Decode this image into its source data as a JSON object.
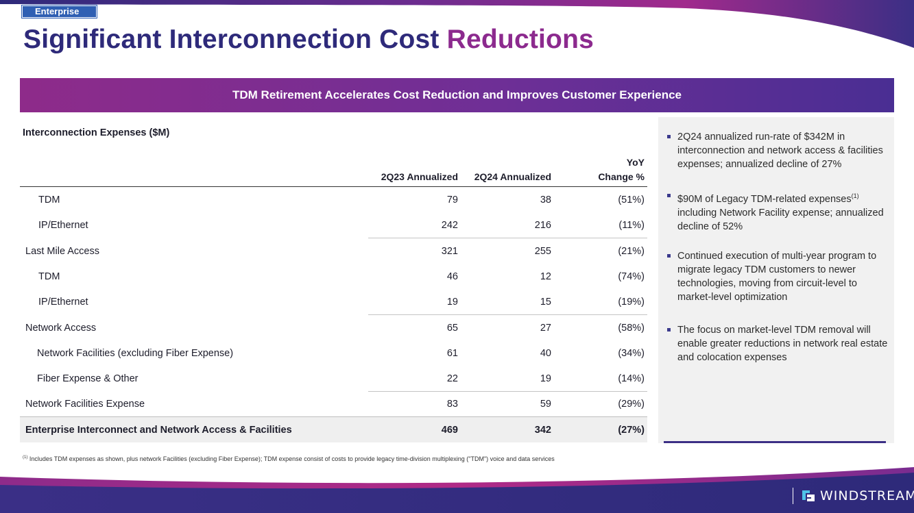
{
  "header": {
    "badge": "Enterprise",
    "title_main": "Significant Interconnection Cost ",
    "title_accent": "Reductions"
  },
  "banner": "TDM Retirement Accelerates Cost Reduction and Improves Customer Experience",
  "table": {
    "caption": "Interconnection Expenses ($M)",
    "col1": "2Q23 Annualized",
    "col2": "2Q24 Annualized",
    "col3_line1": "YoY",
    "col3_line2": "Change %",
    "rows": [
      {
        "label": "TDM",
        "v1": "79",
        "v2": "38",
        "v3": "(51%)"
      },
      {
        "label": "IP/Ethernet",
        "v1": "242",
        "v2": "216",
        "v3": "(11%)"
      },
      {
        "label": "Last Mile Access",
        "v1": "321",
        "v2": "255",
        "v3": "(21%)"
      },
      {
        "label": "TDM",
        "v1": "46",
        "v2": "12",
        "v3": "(74%)"
      },
      {
        "label": "IP/Ethernet",
        "v1": "19",
        "v2": "15",
        "v3": "(19%)"
      },
      {
        "label": "Network Access",
        "v1": "65",
        "v2": "27",
        "v3": "(58%)"
      },
      {
        "label": "Network Facilities (excluding Fiber Expense)",
        "v1": "61",
        "v2": "40",
        "v3": "(34%)"
      },
      {
        "label": "Fiber Expense & Other",
        "v1": "22",
        "v2": "19",
        "v3": "(14%)"
      },
      {
        "label": "Network Facilities Expense",
        "v1": "83",
        "v2": "59",
        "v3": "(29%)"
      },
      {
        "label": "Enterprise Interconnect and Network Access & Facilities",
        "v1": "469",
        "v2": "342",
        "v3": "(27%)"
      }
    ]
  },
  "bullets": {
    "b1": "2Q24 annualized run-rate of $342M in interconnection and network access & facilities expenses; annualized decline of 27%",
    "b2_pre": "$90M of Legacy TDM-related expenses",
    "b2_sup": "(1)",
    "b2_post": " including Network Facility expense; annualized decline of 52%",
    "b3": "Continued execution of multi-year program to migrate legacy TDM customers to newer technologies, moving from circuit-level to market-level optimization",
    "b4": "The focus on market-level TDM removal will enable greater reductions in network real estate and colocation expenses"
  },
  "footnote": {
    "marker": "(1)",
    "text": " Includes TDM expenses as shown, plus network Facilities (excluding Fiber Expense); TDM expense consist of costs to provide legacy time-division multiplexing (\"TDM\") voice and data services"
  },
  "logo": {
    "wordmark": "WINDSTREAM"
  },
  "colors": {
    "navy": "#2e2a7a",
    "purple": "#8c2a8e",
    "badge_blue": "#2f5fb3"
  }
}
